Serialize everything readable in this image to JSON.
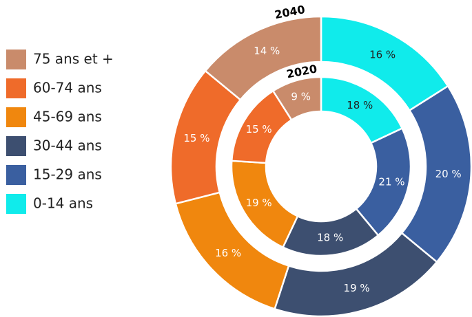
{
  "chart_data": {
    "type": "donut",
    "categories": [
      "0-14 ans",
      "15-29 ans",
      "30-44 ans",
      "45-69 ans",
      "60-74 ans",
      "75 ans et +"
    ],
    "colors": [
      "#10ebeb",
      "#3a5fa0",
      "#3d4f70",
      "#f0870e",
      "#ef6b2a",
      "#c98b6b"
    ],
    "series": [
      {
        "name": "2040",
        "values": [
          16,
          20,
          19,
          16,
          15,
          14
        ],
        "value_labels": [
          "16 %",
          "20 %",
          "19 %",
          "16 %",
          "15 %",
          "14 %"
        ]
      },
      {
        "name": "2020",
        "values": [
          18,
          21,
          18,
          19,
          15,
          9
        ],
        "value_labels": [
          "18 %",
          "21 %",
          "18 %",
          "19 %",
          "15 %",
          "9 %"
        ]
      }
    ]
  }
}
